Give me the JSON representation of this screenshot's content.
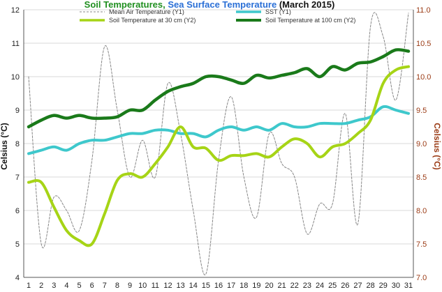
{
  "chart_data": {
    "type": "line",
    "title": {
      "part1": "Soil Temperatures",
      "sep": ", ",
      "part2": "Sea Surface Temperature",
      "part3": " (March 2015)"
    },
    "colors": {
      "title1": "#1f8f1f",
      "title2": "#2a6fd6",
      "title3": "#111111",
      "right_axis": "#9a3a14"
    },
    "ylabel": "Celsius (°C)",
    "y2label": "Celsius (°C)",
    "ylim": [
      4,
      12
    ],
    "y2lim": [
      7.0,
      11.0
    ],
    "y_ticks": [
      "4",
      "5",
      "6",
      "7",
      "8",
      "9",
      "10",
      "11",
      "12"
    ],
    "y2_ticks": [
      "7.0",
      "7.5",
      "8.0",
      "8.5",
      "9.0",
      "9.5",
      "10.0",
      "10.5",
      "11.0"
    ],
    "x": [
      1,
      2,
      3,
      4,
      5,
      6,
      7,
      8,
      9,
      10,
      11,
      12,
      13,
      14,
      15,
      16,
      17,
      18,
      19,
      20,
      21,
      22,
      23,
      24,
      25,
      26,
      27,
      28,
      29,
      30,
      31
    ],
    "series": [
      {
        "name": "Mean Air Temperature (Y1)",
        "axis": "y1",
        "color": "#888888",
        "style": "dashed",
        "values": [
          10.0,
          5.0,
          6.4,
          6.0,
          5.4,
          7.5,
          10.9,
          9.0,
          7.0,
          8.1,
          7.0,
          9.8,
          8.3,
          6.0,
          4.1,
          7.5,
          9.4,
          7.0,
          5.8,
          8.3,
          7.4,
          7.0,
          5.3,
          6.2,
          6.2,
          8.9,
          5.6,
          11.5,
          11.2,
          9.3,
          11.9
        ]
      },
      {
        "name": "SST (Y1)",
        "axis": "y1",
        "color": "#3ec8cc",
        "style": "solid",
        "values": [
          7.7,
          7.8,
          7.9,
          7.8,
          8.0,
          8.1,
          8.1,
          8.2,
          8.3,
          8.3,
          8.4,
          8.4,
          8.3,
          8.3,
          8.2,
          8.4,
          8.5,
          8.4,
          8.5,
          8.4,
          8.6,
          8.5,
          8.5,
          8.6,
          8.6,
          8.6,
          8.7,
          8.8,
          9.1,
          9.0,
          8.9
        ]
      },
      {
        "name": "Soil Temperature at 30 cm (Y2)",
        "axis": "y2",
        "color": "#a6d416",
        "style": "solid",
        "values": [
          8.42,
          8.42,
          8.05,
          7.7,
          7.55,
          7.5,
          7.95,
          8.45,
          8.55,
          8.5,
          8.7,
          8.95,
          9.25,
          8.95,
          8.93,
          8.75,
          8.82,
          8.82,
          8.85,
          8.8,
          8.95,
          9.07,
          9.0,
          8.8,
          8.95,
          9.0,
          9.15,
          9.35,
          9.9,
          10.1,
          10.15
        ]
      },
      {
        "name": "Soil Temperature at 100 cm (Y2)",
        "axis": "y2",
        "color": "#1a7a1a",
        "style": "solid",
        "values": [
          9.25,
          9.35,
          9.42,
          9.38,
          9.42,
          9.38,
          9.38,
          9.4,
          9.5,
          9.5,
          9.65,
          9.78,
          9.85,
          9.9,
          10.0,
          10.0,
          9.95,
          9.9,
          10.02,
          9.98,
          10.02,
          10.06,
          10.12,
          10.0,
          10.15,
          10.1,
          10.2,
          10.22,
          10.3,
          10.4,
          10.38
        ]
      }
    ],
    "legend_position": "top"
  }
}
